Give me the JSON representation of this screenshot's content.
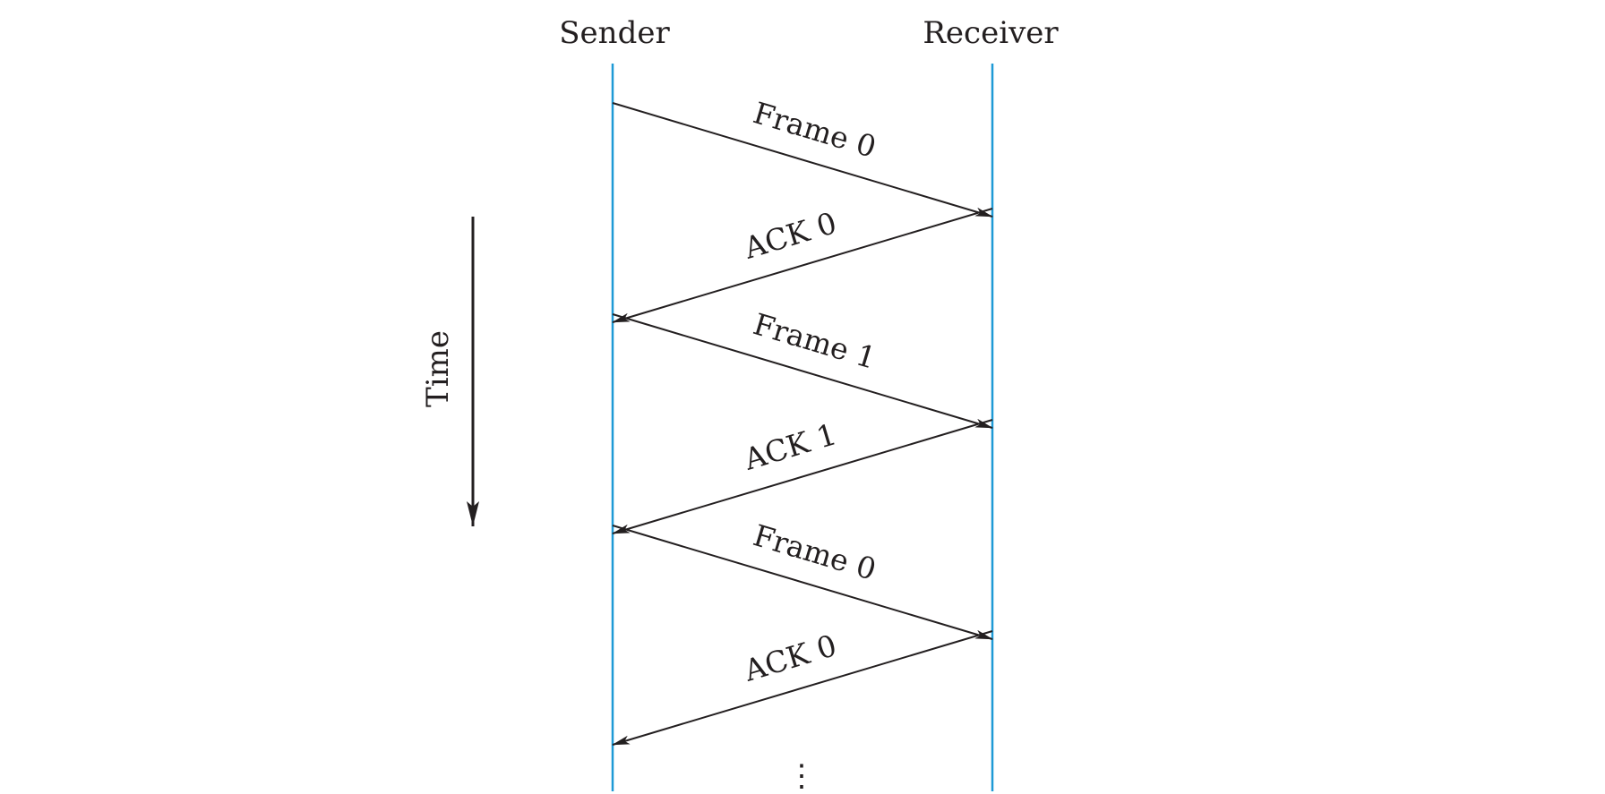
{
  "diagram": {
    "sender_label": "Sender",
    "receiver_label": "Receiver",
    "time_label": "Time",
    "continuation": "⋮",
    "messages": [
      {
        "label": "Frame 0",
        "direction": "sender-to-receiver"
      },
      {
        "label": "ACK 0",
        "direction": "receiver-to-sender"
      },
      {
        "label": "Frame 1",
        "direction": "sender-to-receiver"
      },
      {
        "label": "ACK 1",
        "direction": "receiver-to-sender"
      },
      {
        "label": "Frame 0",
        "direction": "sender-to-receiver"
      },
      {
        "label": "ACK 0",
        "direction": "receiver-to-sender"
      }
    ],
    "colors": {
      "lifeline": "#1e9ad6",
      "arrow": "#231f20",
      "text": "#231f20"
    }
  }
}
